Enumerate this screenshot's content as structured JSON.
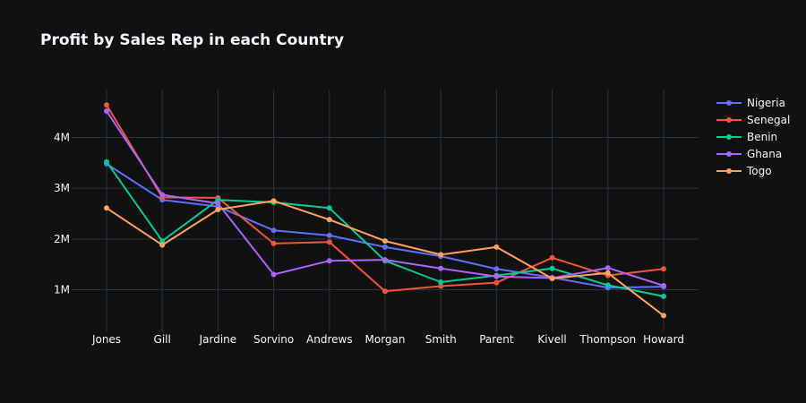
{
  "chart_data": {
    "type": "line",
    "title": "Profit by Sales Rep in each Country",
    "xlabel": "",
    "ylabel": "",
    "categories": [
      "Jones",
      "Gill",
      "Jardine",
      "Sorvino",
      "Andrews",
      "Morgan",
      "Smith",
      "Parent",
      "Kivell",
      "Thompson",
      "Howard"
    ],
    "ylim": [
      0,
      5000000
    ],
    "yticks": [
      1000000,
      2000000,
      3000000,
      4000000
    ],
    "ytick_labels": [
      "1M",
      "2M",
      "3M",
      "4M"
    ],
    "grid": true,
    "legend_position": "top-right",
    "background": "#111111",
    "grid_color": "#283442",
    "series": [
      {
        "name": "Nigeria",
        "color": "#636efa",
        "values": [
          3480000,
          2770000,
          2640000,
          2170000,
          2070000,
          1840000,
          1660000,
          1410000,
          1240000,
          1040000,
          1060000
        ]
      },
      {
        "name": "Senegal",
        "color": "#ef553b",
        "values": [
          4640000,
          2820000,
          2810000,
          1910000,
          1940000,
          970000,
          1070000,
          1140000,
          1630000,
          1280000,
          1410000
        ]
      },
      {
        "name": "Benin",
        "color": "#00cc96",
        "values": [
          3520000,
          1960000,
          2770000,
          2720000,
          2610000,
          1570000,
          1150000,
          1280000,
          1420000,
          1090000,
          870000
        ]
      },
      {
        "name": "Ghana",
        "color": "#ab63fa",
        "values": [
          4520000,
          2870000,
          2700000,
          1300000,
          1570000,
          1590000,
          1420000,
          1260000,
          1230000,
          1430000,
          1080000
        ]
      },
      {
        "name": "Togo",
        "color": "#ffa15a",
        "values": [
          2610000,
          1880000,
          2580000,
          2750000,
          2380000,
          1960000,
          1690000,
          1840000,
          1220000,
          1330000,
          490000
        ]
      }
    ]
  }
}
